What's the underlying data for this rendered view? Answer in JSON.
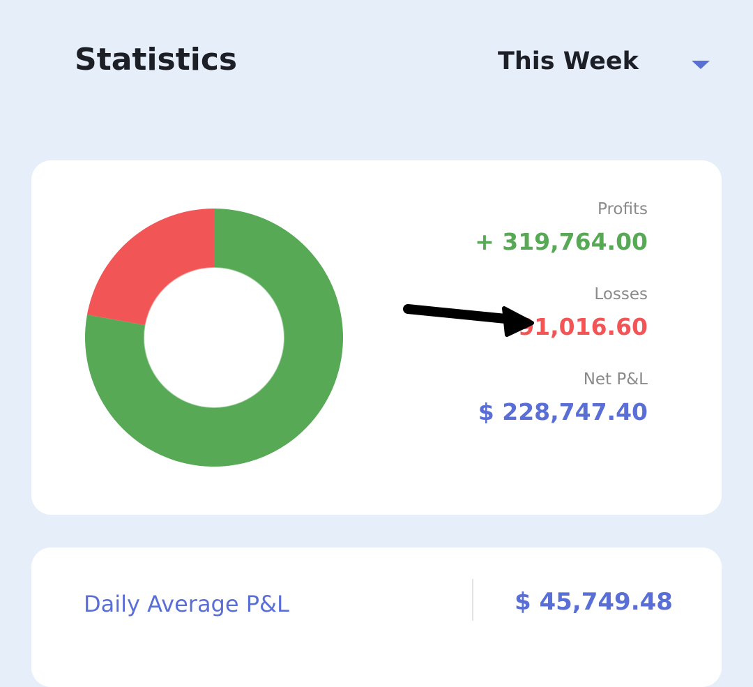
{
  "header": {
    "title": "Statistics",
    "period": "This Week"
  },
  "stats": {
    "items": [
      {
        "label": "Profits",
        "value": "+ 319,764.00",
        "amount": 319764,
        "color": "#57a955"
      },
      {
        "label": "Losses",
        "value": "91,016.60",
        "amount": 91016.6,
        "color": "#f25555"
      },
      {
        "label": "Net P&L",
        "value": "$ 228,747.40",
        "color": "#5a6fd6"
      }
    ]
  },
  "summary": {
    "label": "Daily Average P&L",
    "value": "$ 45,749.48"
  }
}
